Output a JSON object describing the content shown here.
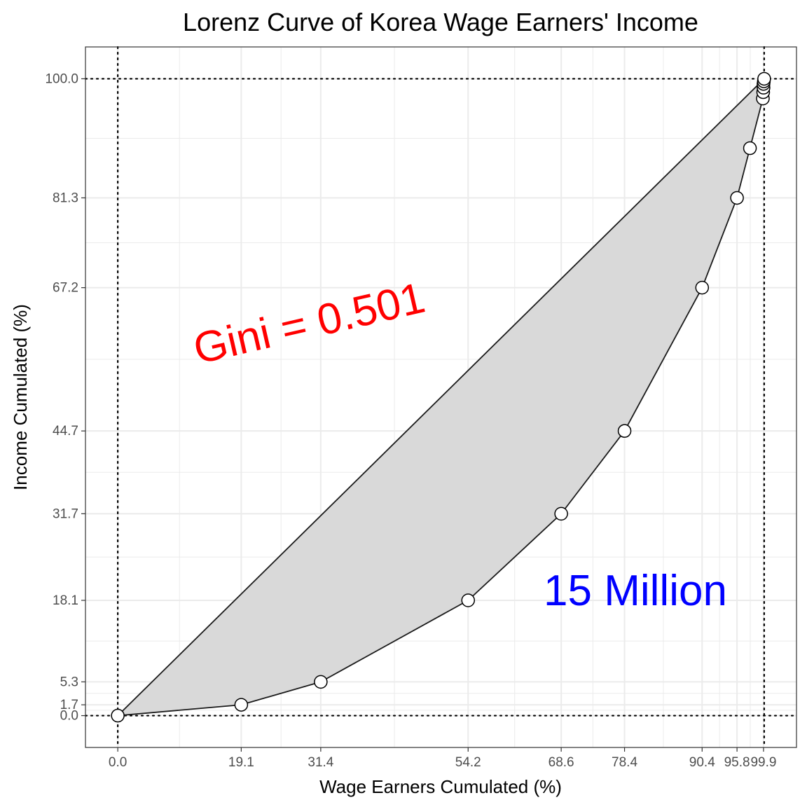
{
  "chart_data": {
    "type": "area",
    "title": "Lorenz Curve of Korea Wage Earners' Income",
    "xlabel": "Wage Earners Cumulated (%)",
    "ylabel": "Income Cumulated (%)",
    "xlim": [
      -5,
      105
    ],
    "ylim": [
      -5,
      105
    ],
    "grid": true,
    "x_ticks": [
      "0.0",
      "19.1",
      "31.4",
      "54.2",
      "68.6",
      "78.4",
      "90.4",
      "95.8",
      "99.9"
    ],
    "x_tick_values": [
      0.0,
      19.1,
      31.4,
      54.2,
      68.6,
      78.4,
      90.4,
      95.8,
      99.9
    ],
    "y_ticks": [
      "0.0",
      "1.7",
      "5.3",
      "18.1",
      "31.7",
      "44.7",
      "67.2",
      "81.3",
      "100.0"
    ],
    "y_tick_values": [
      0.0,
      1.7,
      5.3,
      18.1,
      31.7,
      44.7,
      67.2,
      81.3,
      100.0
    ],
    "series": [
      {
        "x": [
          0.0,
          19.1,
          31.4,
          54.2,
          68.6,
          78.4,
          90.4,
          95.8,
          97.8,
          99.8,
          99.85,
          99.9,
          99.9,
          99.95,
          100.0
        ],
        "y": [
          0.0,
          1.7,
          5.3,
          18.1,
          31.7,
          44.7,
          67.2,
          81.3,
          89.1,
          96.9,
          97.9,
          98.6,
          99.2,
          99.6,
          100.0
        ]
      }
    ],
    "equality_line": [
      [
        0,
        0
      ],
      [
        100,
        100
      ]
    ],
    "reference_lines": {
      "x": [
        0,
        100
      ],
      "y": [
        0,
        100
      ]
    },
    "annotations": [
      {
        "text": "Gini =  0.501",
        "color": "#ff0000"
      },
      {
        "text": "15 Million",
        "color": "#0000ff"
      }
    ],
    "colors": {
      "fill": "#d9d9d9",
      "line": "#1a1a1a",
      "point_fill": "#ffffff",
      "grid": "#ebebeb",
      "gini": "#ff0000",
      "count": "#0000ff"
    }
  }
}
